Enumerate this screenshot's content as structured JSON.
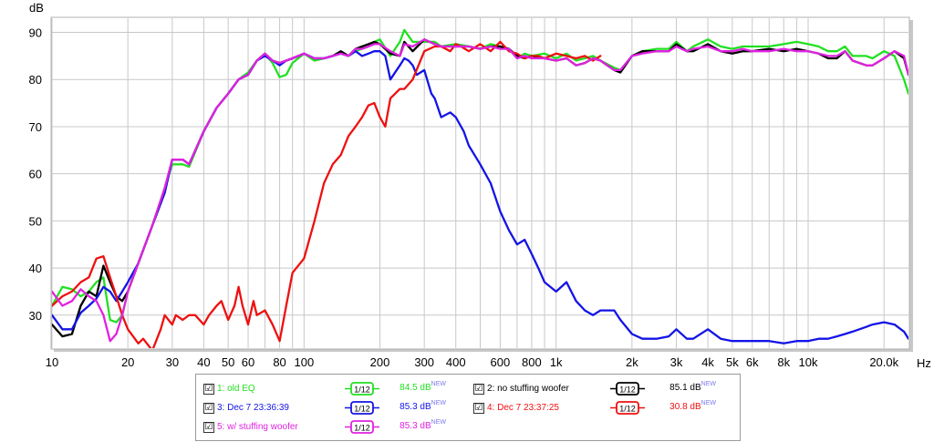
{
  "chart_data": {
    "type": "line",
    "x_scale": "log",
    "y_unit_label": "dB",
    "x_unit_label": "Hz",
    "xlim": [
      10,
      25000
    ],
    "ylim": [
      23,
      93
    ],
    "grid": true,
    "y_ticks": [
      {
        "v": 30,
        "label": "30"
      },
      {
        "v": 40,
        "label": "40"
      },
      {
        "v": 50,
        "label": "50"
      },
      {
        "v": 60,
        "label": "60"
      },
      {
        "v": 70,
        "label": "70"
      },
      {
        "v": 80,
        "label": "80"
      },
      {
        "v": 90,
        "label": "90"
      }
    ],
    "x_ticks": [
      {
        "v": 10,
        "label": "10"
      },
      {
        "v": 20,
        "label": "20"
      },
      {
        "v": 30,
        "label": "30"
      },
      {
        "v": 40,
        "label": "40"
      },
      {
        "v": 50,
        "label": "50"
      },
      {
        "v": 60,
        "label": "60"
      },
      {
        "v": 80,
        "label": "80"
      },
      {
        "v": 100,
        "label": "100"
      },
      {
        "v": 200,
        "label": "200"
      },
      {
        "v": 300,
        "label": "300"
      },
      {
        "v": 400,
        "label": "400"
      },
      {
        "v": 600,
        "label": "600"
      },
      {
        "v": 800,
        "label": "800"
      },
      {
        "v": 1000,
        "label": "1k"
      },
      {
        "v": 2000,
        "label": "2k"
      },
      {
        "v": 3000,
        "label": "3k"
      },
      {
        "v": 4000,
        "label": "4k"
      },
      {
        "v": 5000,
        "label": "5k"
      },
      {
        "v": 6000,
        "label": "6k"
      },
      {
        "v": 8000,
        "label": "8k"
      },
      {
        "v": 10000,
        "label": "10k"
      },
      {
        "v": 20000,
        "label": "20.0k"
      }
    ],
    "series": [
      {
        "name": "1: old EQ",
        "color": "#22e022",
        "smoothing": "1/12",
        "level": "84.5 dB",
        "x": [
          10,
          11,
          12,
          13,
          14,
          15,
          16,
          17,
          18,
          19,
          20,
          22,
          25,
          28,
          30,
          33,
          35,
          40,
          45,
          50,
          55,
          60,
          65,
          70,
          75,
          80,
          85,
          90,
          100,
          110,
          120,
          130,
          140,
          150,
          160,
          170,
          180,
          190,
          200,
          220,
          240,
          250,
          270,
          300,
          330,
          350,
          400,
          450,
          500,
          550,
          600,
          650,
          700,
          750,
          800,
          900,
          1000,
          1100,
          1200,
          1300,
          1400,
          1500,
          1700,
          1800,
          2000,
          2200,
          2500,
          2800,
          3000,
          3300,
          3500,
          4000,
          4500,
          5000,
          5500,
          6000,
          7000,
          8000,
          9000,
          10000,
          11000,
          12000,
          13000,
          14000,
          15000,
          17000,
          18000,
          20000,
          22000,
          24000,
          25000
        ],
        "y": [
          32,
          36,
          35.5,
          34,
          35,
          37,
          38,
          29,
          28.5,
          30,
          35,
          41,
          49,
          57,
          62,
          62,
          61.5,
          69,
          74,
          77,
          80,
          81.5,
          84,
          85.5,
          83.5,
          80.5,
          81,
          83.5,
          85.5,
          84,
          84.5,
          85,
          85.5,
          85,
          86,
          86.5,
          87,
          88,
          88.5,
          85,
          88,
          90.5,
          88,
          88,
          88,
          87,
          87.5,
          87,
          86.5,
          87.5,
          87,
          86.5,
          84.5,
          85.5,
          85,
          85.5,
          84.5,
          85.5,
          84,
          84.5,
          85,
          84,
          82.5,
          82,
          85,
          86,
          86.5,
          86.5,
          88,
          86,
          87,
          88.5,
          87,
          86.5,
          87,
          87,
          87,
          87.5,
          88,
          87.5,
          87,
          86,
          86,
          87,
          85,
          85,
          84.5,
          86,
          85,
          80,
          77
        ]
      },
      {
        "name": "2: no stuffing woofer",
        "color": "#000000",
        "smoothing": "1/12",
        "level": "85.1 dB",
        "x": [
          10,
          11,
          12,
          13,
          14,
          15,
          16,
          17,
          18,
          19,
          20,
          22,
          25,
          28,
          30,
          33,
          35,
          40,
          45,
          50,
          55,
          60,
          65,
          70,
          75,
          80,
          85,
          90,
          100,
          110,
          120,
          130,
          140,
          150,
          160,
          170,
          180,
          190,
          200,
          220,
          240,
          250,
          270,
          300,
          330,
          350,
          400,
          450,
          500,
          550,
          600,
          650,
          700,
          750,
          800,
          900,
          1000,
          1100,
          1200,
          1300,
          1400,
          1500,
          1700,
          1800,
          2000,
          2200,
          2500,
          2800,
          3000,
          3300,
          3500,
          4000,
          4500,
          5000,
          5500,
          6000,
          7000,
          8000,
          9000,
          10000,
          11000,
          12000,
          13000,
          14000,
          15000,
          17000,
          18000,
          20000,
          22000,
          24000,
          25000
        ],
        "y": [
          28,
          25.5,
          26,
          32,
          35,
          34,
          40.5,
          37,
          34,
          33,
          35,
          41,
          49,
          56,
          63,
          63,
          62,
          69,
          74,
          77,
          80,
          81,
          84,
          85.5,
          84,
          83.5,
          84,
          84.5,
          85.5,
          84.5,
          84.5,
          85,
          86,
          85,
          86.5,
          87,
          87.5,
          88,
          87.5,
          85.5,
          85,
          88,
          86,
          88.5,
          87.5,
          87,
          87,
          87,
          86.5,
          87,
          87,
          86.5,
          85,
          84.5,
          85,
          84.5,
          84,
          84.5,
          83,
          83.5,
          84.5,
          84,
          82,
          81.5,
          85,
          86,
          86,
          86,
          87.5,
          86,
          86,
          87.5,
          86,
          85.5,
          86,
          86,
          86.5,
          86,
          86.5,
          86,
          85.5,
          84.5,
          84.5,
          86,
          84,
          83,
          83,
          84.5,
          86,
          84.5,
          81
        ]
      },
      {
        "name": "3: Dec 7 23:36:39",
        "color": "#1414e6",
        "smoothing": "1/12",
        "level": "85.3 dB",
        "x": [
          10,
          11,
          12,
          13,
          14,
          15,
          16,
          17,
          18,
          19,
          20,
          22,
          25,
          28,
          30,
          33,
          35,
          40,
          45,
          50,
          55,
          60,
          65,
          70,
          75,
          80,
          85,
          90,
          100,
          110,
          120,
          130,
          140,
          150,
          160,
          170,
          180,
          190,
          200,
          210,
          220,
          240,
          250,
          260,
          270,
          280,
          300,
          320,
          330,
          350,
          380,
          400,
          430,
          450,
          500,
          550,
          600,
          650,
          700,
          750,
          800,
          850,
          900,
          1000,
          1100,
          1200,
          1300,
          1400,
          1500,
          1600,
          1700,
          1800,
          2000,
          2200,
          2500,
          2800,
          3000,
          3300,
          3500,
          4000,
          4500,
          5000,
          5500,
          6000,
          7000,
          8000,
          9000,
          10000,
          11000,
          12000,
          13000,
          14000,
          15000,
          17000,
          18000,
          20000,
          22000,
          24000,
          25000
        ],
        "y": [
          30,
          27,
          27,
          30.5,
          32,
          33.5,
          36,
          35,
          33,
          35,
          37,
          41,
          49,
          56,
          63,
          63,
          62,
          69,
          74,
          77,
          80,
          81,
          84,
          85,
          84,
          83,
          84,
          84.5,
          85.5,
          84.5,
          84.5,
          85,
          85.5,
          85,
          86,
          85,
          85.5,
          86,
          86,
          85,
          80,
          83,
          84.5,
          84,
          83,
          81,
          82,
          77,
          76,
          72,
          73,
          72,
          69,
          66,
          62,
          58,
          52,
          48,
          45,
          46,
          43,
          40,
          37,
          35,
          37,
          33,
          31,
          30,
          31,
          31,
          31,
          29,
          26,
          25,
          25,
          25.5,
          27,
          25,
          25,
          27,
          25,
          24.5,
          24.5,
          24.5,
          24.5,
          24,
          24.5,
          24.5,
          25,
          25,
          25.5,
          26,
          26.5,
          27.5,
          28,
          28.5,
          28,
          26.5,
          25
        ]
      },
      {
        "name": "4: Dec 7 23:37:25",
        "color": "#ee1010",
        "smoothing": "1/12",
        "level": "30.8 dB",
        "x": [
          10,
          11,
          12,
          13,
          14,
          15,
          16,
          17,
          18,
          19,
          20,
          22,
          23,
          25,
          27,
          28,
          30,
          31,
          33,
          35,
          37,
          40,
          42,
          45,
          47,
          50,
          53,
          55,
          57,
          60,
          63,
          65,
          70,
          75,
          80,
          85,
          90,
          100,
          110,
          120,
          130,
          140,
          150,
          160,
          170,
          180,
          190,
          200,
          210,
          220,
          240,
          250,
          270,
          300,
          330,
          350,
          380,
          400,
          420,
          450,
          500,
          550,
          600,
          650,
          700,
          750,
          800,
          850,
          900,
          1000,
          1100,
          1200,
          1300,
          1400,
          1500
        ],
        "y": [
          32,
          34,
          35,
          37,
          38,
          42,
          42.5,
          38,
          34,
          30,
          27,
          24,
          25,
          22.5,
          27,
          30,
          28,
          30,
          29,
          30,
          30,
          28,
          30,
          32,
          33,
          29,
          32,
          36,
          32,
          28,
          33,
          30,
          31,
          28,
          24.5,
          32,
          39,
          42,
          50,
          58,
          62,
          64,
          68,
          70,
          72,
          74.5,
          75,
          72,
          70,
          76,
          78,
          78,
          80,
          86,
          87,
          87,
          86,
          87.5,
          87,
          86,
          87.5,
          86,
          88,
          86,
          85.5,
          84.5,
          85,
          85,
          84.5,
          85.5,
          85,
          84.5,
          85,
          84,
          85
        ]
      },
      {
        "name": "5: w/ stuffing woofer",
        "color": "#e022e0",
        "smoothing": "1/12",
        "level": "85.3 dB",
        "x": [
          10,
          11,
          12,
          13,
          14,
          15,
          16,
          17,
          18,
          19,
          20,
          22,
          25,
          28,
          30,
          33,
          35,
          40,
          45,
          50,
          55,
          60,
          65,
          70,
          75,
          80,
          85,
          90,
          100,
          110,
          120,
          130,
          140,
          150,
          160,
          170,
          180,
          190,
          200,
          220,
          240,
          250,
          270,
          300,
          330,
          350,
          400,
          450,
          500,
          550,
          600,
          650,
          700,
          750,
          800,
          900,
          1000,
          1100,
          1200,
          1300,
          1400,
          1500,
          1700,
          1800,
          2000,
          2200,
          2500,
          2800,
          3000,
          3300,
          3500,
          4000,
          4500,
          5000,
          5500,
          6000,
          7000,
          8000,
          9000,
          10000,
          11000,
          12000,
          13000,
          14000,
          15000,
          17000,
          18000,
          20000,
          22000,
          24000,
          25000
        ],
        "y": [
          35,
          32,
          33,
          35.5,
          34,
          33,
          30,
          24.5,
          26,
          30,
          35,
          41,
          49,
          57,
          63,
          63,
          62,
          69,
          74,
          77,
          80,
          81,
          84,
          85.5,
          84,
          83.5,
          84,
          84.5,
          85.5,
          84.5,
          84.5,
          85,
          85.5,
          85,
          86.5,
          86.5,
          87,
          87.5,
          87.5,
          86,
          85,
          87.5,
          87,
          88.5,
          87.5,
          87,
          87,
          87,
          86.5,
          87,
          86.5,
          86.5,
          84.5,
          85,
          84.5,
          84.5,
          84,
          84.5,
          83,
          83.5,
          84.5,
          84,
          82,
          82,
          85,
          85.5,
          86,
          86,
          87,
          86,
          86.5,
          87,
          86,
          86,
          86.5,
          86,
          86,
          86.5,
          86,
          86,
          85.5,
          85,
          85,
          86,
          84,
          83,
          83,
          84.5,
          86,
          85,
          81
        ]
      }
    ]
  },
  "legend": [
    {
      "id": "s1",
      "name": "1: old EQ",
      "color": "#22e022",
      "checked": "☑",
      "smoothing": "1/12",
      "level": "84.5 dB",
      "tag": "NEW"
    },
    {
      "id": "s2",
      "name": "2: no stuffing woofer",
      "color": "#000000",
      "checked": "☑",
      "smoothing": "1/12",
      "level": "85.1 dB",
      "tag": "NEW"
    },
    {
      "id": "s3",
      "name": "3: Dec 7 23:36:39",
      "color": "#1414e6",
      "checked": "☑",
      "smoothing": "1/12",
      "level": "85.3 dB",
      "tag": "NEW"
    },
    {
      "id": "s4",
      "name": "4: Dec 7 23:37:25",
      "color": "#ee1010",
      "checked": "☑",
      "smoothing": "1/12",
      "level": "30.8 dB",
      "tag": "NEW"
    },
    {
      "id": "s5",
      "name": "5: w/ stuffing woofer",
      "color": "#e022e0",
      "checked": "☑",
      "smoothing": "1/12",
      "level": "85.3 dB",
      "tag": "NEW"
    }
  ]
}
